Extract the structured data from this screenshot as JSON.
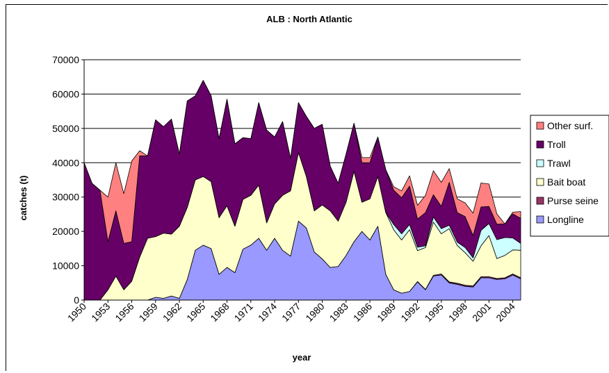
{
  "chart_data": {
    "type": "area",
    "stacked": true,
    "title": "ALB : North Atlantic",
    "xlabel": "year",
    "ylabel": "catches (t)",
    "ylim": [
      0,
      70000
    ],
    "yticks": [
      0,
      10000,
      20000,
      30000,
      40000,
      50000,
      60000,
      70000
    ],
    "ytick_labels": [
      "0",
      "10000",
      "20000",
      "30000",
      "40000",
      "50000",
      "60000",
      "70000"
    ],
    "x": [
      1950,
      1951,
      1952,
      1953,
      1954,
      1955,
      1956,
      1957,
      1958,
      1959,
      1960,
      1961,
      1962,
      1963,
      1964,
      1965,
      1966,
      1967,
      1968,
      1969,
      1970,
      1971,
      1972,
      1973,
      1974,
      1975,
      1976,
      1977,
      1978,
      1979,
      1980,
      1981,
      1982,
      1983,
      1984,
      1985,
      1986,
      1987,
      1988,
      1989,
      1990,
      1991,
      1992,
      1993,
      1994,
      1995,
      1996,
      1997,
      1998,
      1999,
      2000,
      2001,
      2002,
      2003,
      2004,
      2005
    ],
    "xtick_labels": [
      "1950",
      "1953",
      "1956",
      "1959",
      "1962",
      "1965",
      "1968",
      "1971",
      "1974",
      "1977",
      "1980",
      "1983",
      "1986",
      "1989",
      "1992",
      "1995",
      "1998",
      "2001",
      "2004"
    ],
    "grid": "horizontal",
    "legend_position": "right",
    "series": [
      {
        "name": "Longline",
        "color": "#9999ff",
        "values": [
          0,
          0,
          0,
          0,
          0,
          0,
          0,
          0,
          0,
          800,
          500,
          1200,
          500,
          6000,
          14500,
          16000,
          15000,
          7500,
          9500,
          8000,
          14800,
          16000,
          18000,
          14500,
          18000,
          14500,
          12800,
          23000,
          21000,
          14000,
          12000,
          9500,
          9800,
          13000,
          17000,
          20000,
          17500,
          21500,
          7500,
          3000,
          2000,
          2500,
          5300,
          3000,
          7000,
          7300,
          5000,
          4600,
          4000,
          3800,
          6500,
          6500,
          6000,
          6200,
          7300,
          6200
        ]
      },
      {
        "name": "Purse seine",
        "color": "#993366",
        "values": [
          0,
          0,
          0,
          0,
          0,
          0,
          0,
          0,
          0,
          0,
          0,
          0,
          0,
          0,
          0,
          0,
          0,
          0,
          0,
          0,
          0,
          0,
          0,
          0,
          0,
          0,
          0,
          0,
          0,
          0,
          0,
          0,
          0,
          0,
          0,
          0,
          0,
          0,
          0,
          0,
          0,
          0,
          100,
          100,
          200,
          300,
          300,
          300,
          300,
          300,
          300,
          300,
          300,
          300,
          300,
          300
        ]
      },
      {
        "name": "Bait boat",
        "color": "#ffffcc",
        "values": [
          0,
          0,
          0,
          3000,
          7000,
          3000,
          5500,
          12500,
          18000,
          17700,
          19000,
          18000,
          21000,
          21000,
          20500,
          20000,
          19500,
          16500,
          18000,
          13500,
          14500,
          14500,
          15500,
          8000,
          10000,
          16000,
          19000,
          20000,
          15000,
          12000,
          15700,
          16500,
          13200,
          15500,
          20500,
          8500,
          12000,
          14500,
          18000,
          17500,
          15500,
          18000,
          9000,
          12200,
          15500,
          11700,
          15500,
          11000,
          9500,
          7200,
          9000,
          12000,
          5800,
          6500,
          7000,
          8000
        ]
      },
      {
        "name": "Trawl",
        "color": "#ccffff",
        "values": [
          0,
          0,
          0,
          0,
          0,
          0,
          0,
          0,
          0,
          0,
          0,
          0,
          0,
          0,
          0,
          0,
          0,
          0,
          0,
          0,
          0,
          0,
          0,
          0,
          0,
          0,
          0,
          0,
          0,
          0,
          0,
          0,
          0,
          0,
          0,
          0,
          0,
          0,
          0,
          1500,
          1800,
          1500,
          1000,
          500,
          1500,
          1500,
          1000,
          1000,
          1500,
          1000,
          4500,
          3500,
          5500,
          5200,
          3500,
          2000
        ]
      },
      {
        "name": "Troll",
        "color": "#660066",
        "values": [
          40000,
          34000,
          32000,
          14000,
          19000,
          13500,
          11500,
          29500,
          24000,
          34000,
          31000,
          33500,
          21000,
          31000,
          24500,
          28000,
          25000,
          23000,
          31000,
          24000,
          18000,
          16500,
          24000,
          27000,
          19500,
          21500,
          9500,
          14500,
          17500,
          24000,
          23500,
          13000,
          11000,
          14000,
          14000,
          11500,
          10500,
          11500,
          12500,
          10000,
          10500,
          11200,
          8200,
          9700,
          6500,
          6500,
          12500,
          8600,
          9000,
          6500,
          6800,
          5000,
          4500,
          4000,
          7000,
          7300
        ]
      },
      {
        "name": "Other surf.",
        "color": "#ff8080",
        "values": [
          0,
          0,
          0,
          13000,
          14000,
          14500,
          23500,
          1500,
          0,
          0,
          0,
          0,
          0,
          0,
          0,
          0,
          0,
          0,
          0,
          0,
          0,
          0,
          0,
          0,
          0,
          0,
          0,
          0,
          0,
          0,
          0,
          0,
          0,
          0,
          0,
          1500,
          1500,
          0,
          0,
          1000,
          2000,
          3000,
          4000,
          5000,
          7000,
          7000,
          4000,
          4000,
          4000,
          6500,
          7000,
          6500,
          3000,
          0,
          500,
          2000
        ]
      }
    ]
  }
}
